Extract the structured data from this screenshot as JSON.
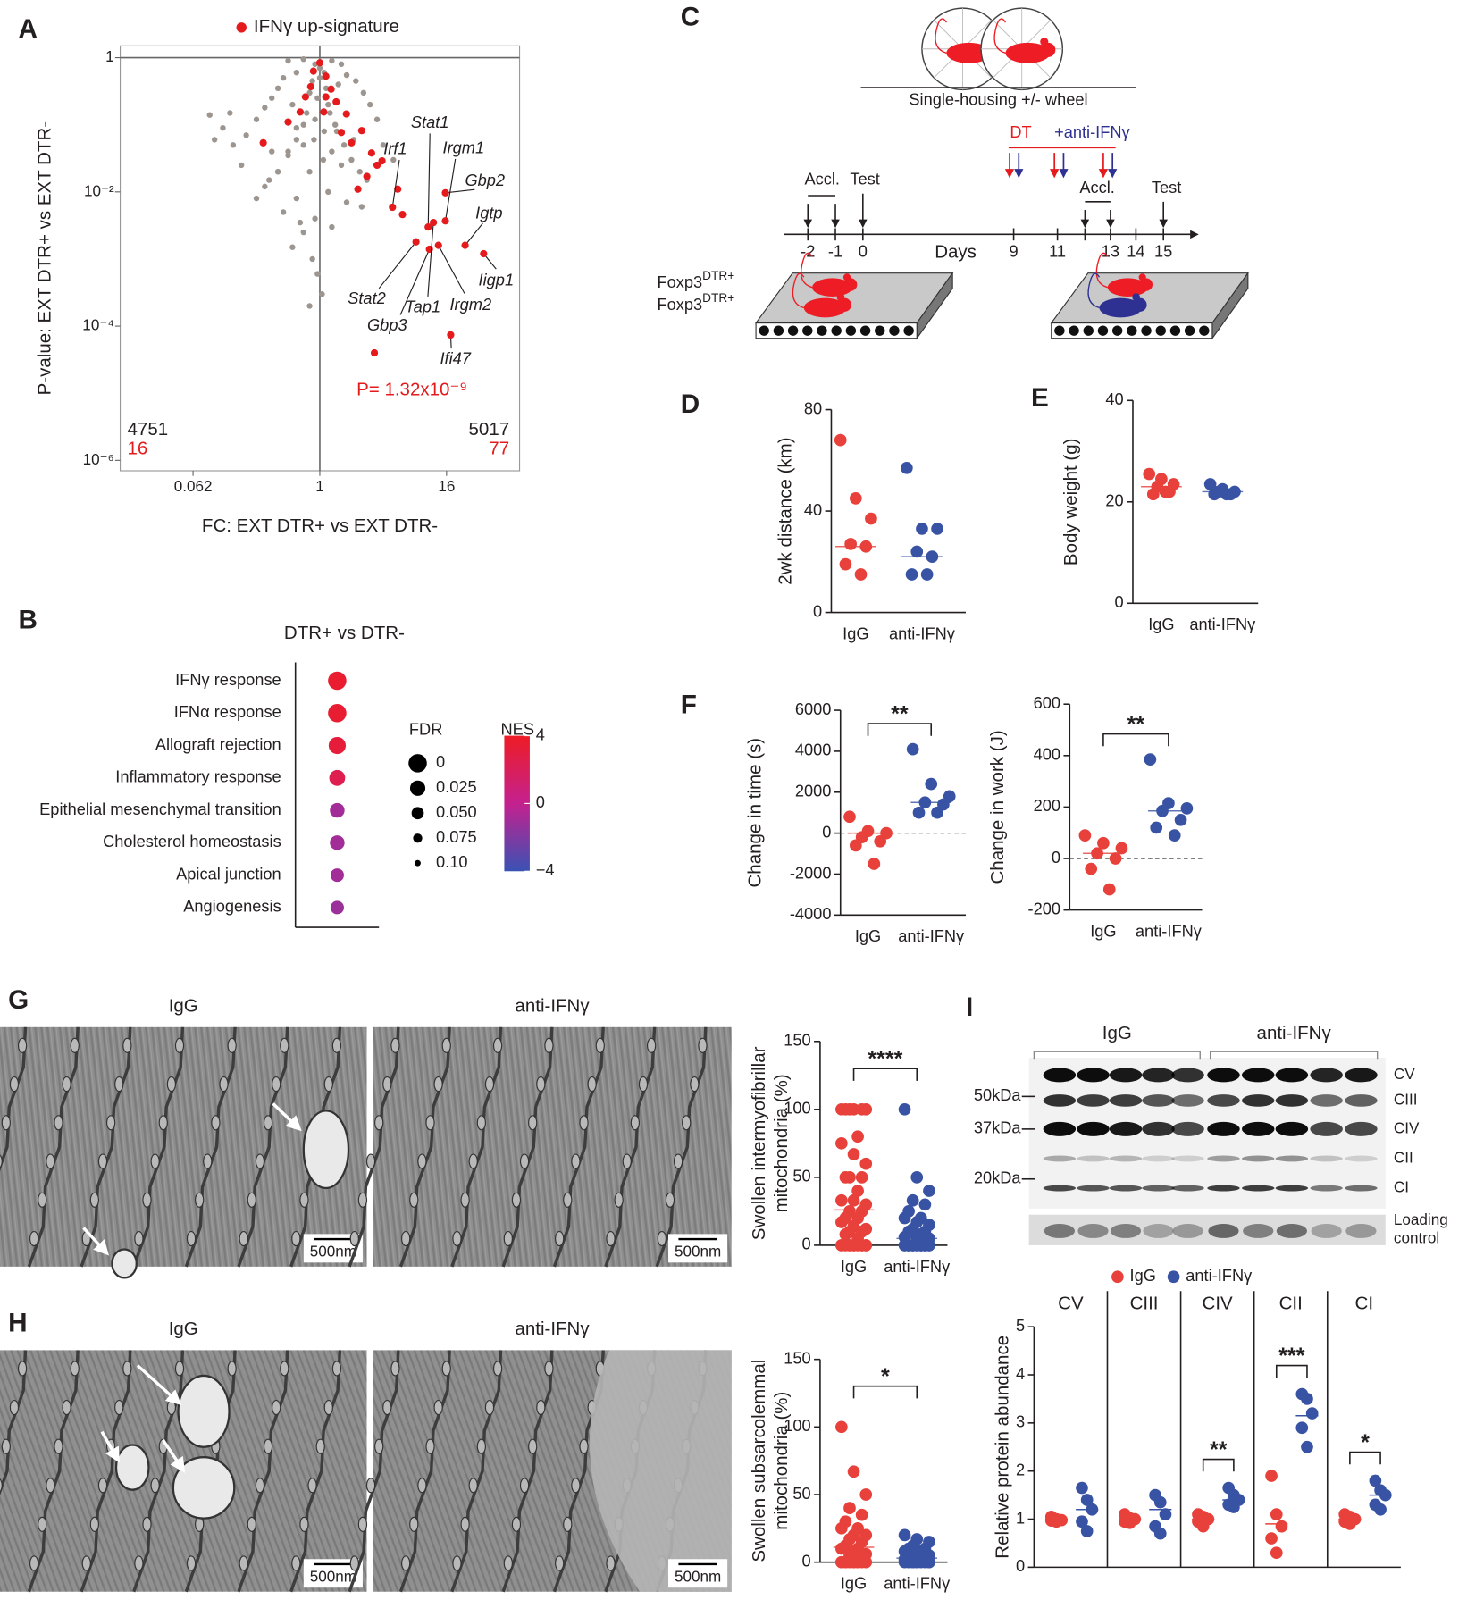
{
  "panel_letters": [
    "A",
    "B",
    "C",
    "D",
    "E",
    "F",
    "G",
    "H",
    "I"
  ],
  "chart_data": [
    {
      "type": "scatter",
      "log_x": true,
      "log_y": true,
      "xlabel": "FC: EXT DTR+ vs EXT DTR-",
      "ylabel": "P-value: EXT DTR+ vs EXT DTR-",
      "xlim": [
        0.0127,
        79
      ],
      "ylim": [
        7e-07,
        1.5
      ],
      "xticks": [
        {
          "value": 0.0625,
          "label": "0.062"
        },
        1,
        16
      ],
      "yticks": [
        1,
        {
          "value": 0.01,
          "label": "10⁻²"
        },
        {
          "value": 0.0001,
          "label": "10⁻⁴"
        },
        {
          "value": 1e-06,
          "label": "10⁻⁶"
        }
      ],
      "x_ref": 1,
      "y_ref": 1,
      "series": [
        {
          "color": "#9d958f",
          "x": [
            0.5,
            0.7,
            1.3,
            1.6,
            0.6,
            0.45,
            1.8,
            2.2,
            0.4,
            0.35,
            2.6,
            0.3,
            0.25,
            3,
            0.55,
            1.5,
            0.8,
            1.2,
            0.9,
            1.1,
            0.6,
            0.2,
            0.15,
            0.12,
            0.1,
            3.5,
            0.7,
            1.3,
            2.1,
            0.5,
            0.4,
            0.8,
            1.6,
            0.3,
            0.6,
            1.2,
            0.45,
            0.9,
            0.7,
            0.55,
            0.85,
            0.95,
            0.8,
            1.3,
            1.8,
            2.5,
            0.18,
            0.14,
            0.09,
            0.35,
            1,
            1,
            0.9,
            1.1,
            0.75,
            1.4,
            4,
            5,
            2.8,
            0.25,
            0.65,
            1.05,
            0.85,
            1.15,
            0.95,
            1.25,
            0.7,
            1.45,
            0.6,
            1.7,
            0.5,
            2,
            0.4,
            2.4,
            0.33,
            0.88,
            1.08
          ],
          "values": [
            0.9,
            0.95,
            0.9,
            0.8,
            0.6,
            0.5,
            0.55,
            0.45,
            0.35,
            0.25,
            0.3,
            0.18,
            0.12,
            0.2,
            0.2,
            0.4,
            0.3,
            0.2,
            0.12,
            0.08,
            0.09,
            0.07,
            0.05,
            0.09,
            0.06,
            0.12,
            0.05,
            0.04,
            0.06,
            0.035,
            0.02,
            0.02,
            0.025,
            0.012,
            0.008,
            0.01,
            0.005,
            0.004,
            0.0025,
            0.0015,
            0.001,
            0.0006,
            0.0002,
            0.003,
            0.007,
            0.006,
            0.025,
            0.15,
            0.14,
            0.04,
            0.5,
            0.7,
            0.8,
            0.6,
            0.15,
            0.1,
            0.05,
            0.03,
            0.015,
            0.008,
            0.0035,
            0.0003,
            0.45,
            0.35,
            0.25,
            0.15,
            0.1,
            0.08,
            0.06,
            0.05,
            0.04,
            0.03,
            0.02,
            0.02,
            0.015,
            0.06,
            0.03
          ]
        },
        {
          "name": "IFNγ up-signature",
          "color": "#e41a1c",
          "x": [
            1,
            0.87,
            1.14,
            0.82,
            1.28,
            1.43,
            1.09,
            0.73,
            1.79,
            1.6,
            2,
            2.5,
            3.1,
            3.5,
            3.9,
            2.8,
            2.3,
            5.5,
            0.65,
            0.29,
            0.5,
            1.14,
            6.1,
            3.3,
            4.9,
            10.7,
            15.6,
            15.6,
            24,
            36,
            8.2,
            11,
            12,
            13.4,
            17.5
          ],
          "values": [
            0.84,
            0.63,
            0.53,
            0.37,
            0.34,
            0.22,
            0.155,
            0.26,
            0.145,
            0.077,
            0.054,
            0.082,
            0.038,
            0.025,
            0.029,
            0.017,
            0.011,
            0.011,
            0.155,
            0.054,
            0.11,
            0.26,
            0.0046,
            4e-05,
            0.0059,
            0.003,
            0.0037,
            0.0097,
            0.0016,
            0.0012,
            0.0018,
            0.0014,
            0.0035,
            0.0016,
            7.4e-05
          ],
          "point_labels": [
            null,
            null,
            null,
            null,
            null,
            null,
            null,
            null,
            null,
            null,
            null,
            null,
            null,
            null,
            null,
            null,
            null,
            null,
            null,
            null,
            null,
            null,
            null,
            null,
            "Irf1",
            "Stat1",
            "Irgm1",
            "Gbp2",
            "Igtp",
            "Iigp1",
            "Stat2",
            "Gbp3",
            "Tap1",
            "Irgm2",
            "Ifi47"
          ]
        }
      ],
      "annotations": [
        {
          "text": "4751",
          "color": "#231f20"
        },
        {
          "text": "16",
          "color": "#e41a1c"
        },
        {
          "text": "5017",
          "color": "#231f20"
        },
        {
          "text": "77",
          "color": "#e41a1c"
        },
        {
          "text": "P= 1.32x10⁻⁹",
          "color": "#e41a1c"
        }
      ]
    },
    {
      "type": "dotplot",
      "title": "DTR+ vs DTR-",
      "categories": [
        "IFNγ response",
        "IFNα response",
        "Allograft rejection",
        "Inflammatory response",
        "Epithelial mesenchymal transition",
        "Cholesterol homeostasis",
        "Apical junction",
        "Angiogenesis"
      ],
      "series": [
        {
          "name": "FDR",
          "values": [
            0,
            0,
            0.01,
            0.02,
            0.03,
            0.03,
            0.04,
            0.04
          ]
        },
        {
          "name": "NES",
          "values": [
            3.6,
            3.5,
            3.2,
            2.4,
            -1,
            -1,
            -1,
            -1.2
          ]
        }
      ],
      "size_legend": [
        0,
        0.025,
        {
          "value": 0.05,
          "label": "0.050"
        },
        0.075,
        {
          "value": 0.1,
          "label": "0.10"
        }
      ],
      "clim": [
        -4,
        4
      ],
      "cticks": [
        4,
        0,
        {
          "value": -4,
          "label": "−4"
        }
      ],
      "colormap": [
        "#3a52b4",
        "#c4218f",
        "#ee1c25"
      ]
    },
    {
      "type": "strip",
      "ylabel": [
        "2wk distance (km)"
      ],
      "ylim": [
        0,
        80
      ],
      "yticks": [
        0,
        40,
        80
      ],
      "series": [
        {
          "name": "IgG",
          "color": "#e8403a",
          "values": [
            68,
            45,
            37,
            27,
            26,
            19,
            15
          ],
          "center": 26
        },
        {
          "name": "anti-IFNγ",
          "color": "#3953a4",
          "values": [
            57,
            33,
            33,
            24,
            22,
            15,
            15
          ],
          "center": 22
        }
      ]
    },
    {
      "type": "strip",
      "ylabel": [
        "Body weight (g)"
      ],
      "ylim": [
        0,
        40
      ],
      "yticks": [
        0,
        20,
        40
      ],
      "series": [
        {
          "name": "IgG",
          "color": "#e8403a",
          "values": [
            25.5,
            24.5,
            23.5,
            23,
            22,
            21.5,
            22
          ],
          "center": 23
        },
        {
          "name": "anti-IFNγ",
          "color": "#3953a4",
          "values": [
            23.5,
            22.5,
            22,
            22,
            21.5,
            21.5,
            21.5
          ],
          "center": 22
        }
      ]
    },
    {
      "type": "strip",
      "ylabel": [
        "Change in time (s)"
      ],
      "ylim": [
        -4000,
        6000
      ],
      "yticks": [
        -4000,
        -2000,
        0,
        2000,
        4000,
        6000
      ],
      "zero_line": true,
      "significance": "**",
      "series": [
        {
          "name": "IgG",
          "color": "#e8403a",
          "values": [
            800,
            100,
            0,
            -200,
            -400,
            -600,
            -1500
          ],
          "center": 0
        },
        {
          "name": "anti-IFNγ",
          "color": "#3953a4",
          "values": [
            4100,
            2400,
            1800,
            1500,
            1400,
            1000,
            1000
          ],
          "center": 1500
        }
      ]
    },
    {
      "type": "strip",
      "ylabel": [
        "Change in work (J)"
      ],
      "ylim": [
        -200,
        600
      ],
      "yticks": [
        -200,
        0,
        200,
        400,
        600
      ],
      "zero_line": true,
      "significance": "**",
      "series": [
        {
          "name": "IgG",
          "color": "#e8403a",
          "values": [
            90,
            60,
            40,
            20,
            0,
            -40,
            -120
          ],
          "center": 20
        },
        {
          "name": "anti-IFNγ",
          "color": "#3953a4",
          "values": [
            385,
            215,
            195,
            185,
            150,
            120,
            90
          ],
          "center": 185
        }
      ]
    },
    {
      "type": "strip",
      "ylabel": [
        "Swollen intermyofibrillar",
        "mitochondria (%)"
      ],
      "ylim": [
        0,
        150
      ],
      "yticks": [
        0,
        50,
        100,
        150
      ],
      "significance": "****",
      "series": [
        {
          "name": "IgG",
          "color": "#e8403a",
          "values": [
            100,
            100,
            100,
            100,
            100,
            100,
            80,
            75,
            67,
            60,
            50,
            50,
            50,
            40,
            33,
            33,
            30,
            25,
            25,
            20,
            20,
            17,
            14,
            12,
            10,
            10,
            8,
            5,
            0,
            0,
            0,
            0,
            0,
            0,
            0,
            0,
            0,
            0,
            0,
            0
          ],
          "center": 26
        },
        {
          "name": "anti-IFNγ",
          "color": "#3953a4",
          "values": [
            100,
            50,
            40,
            33,
            30,
            25,
            20,
            20,
            17,
            15,
            12,
            10,
            10,
            8,
            6,
            5,
            5,
            0,
            0,
            0,
            0,
            0,
            0,
            0,
            0,
            0,
            0,
            0,
            0,
            0,
            0,
            0,
            0,
            0,
            0
          ],
          "center": 5
        }
      ]
    },
    {
      "type": "strip",
      "ylabel": [
        "Swollen subsarcolemmal",
        "mitochondria (%)"
      ],
      "ylim": [
        0,
        150
      ],
      "yticks": [
        0,
        50,
        100,
        150
      ],
      "significance": "*",
      "series": [
        {
          "name": "IgG",
          "color": "#e8403a",
          "values": [
            100,
            67,
            50,
            40,
            35,
            30,
            25,
            25,
            20,
            20,
            17,
            15,
            12,
            10,
            10,
            8,
            6,
            5,
            5,
            0,
            0,
            0,
            0,
            0,
            0,
            0,
            0,
            0,
            0,
            0
          ],
          "center": 11
        },
        {
          "name": "anti-IFNγ",
          "color": "#3953a4",
          "values": [
            20,
            17,
            15,
            12,
            10,
            10,
            8,
            8,
            6,
            5,
            5,
            5,
            4,
            3,
            2,
            0,
            0,
            0,
            0,
            0,
            0,
            0,
            0,
            0,
            0
          ],
          "center": 3
        }
      ]
    },
    {
      "type": "strip_facets",
      "ylabel": [
        "Relative protein abundance"
      ],
      "ylim": [
        0,
        5
      ],
      "yticks": [
        0,
        1,
        2,
        3,
        4,
        5
      ],
      "series": [
        {
          "name": "IgG",
          "color": "#e8403a"
        },
        {
          "name": "anti-IFNγ",
          "color": "#3953a4"
        }
      ],
      "panels": [
        {
          "title": "CV",
          "values": [
            [
              1.05,
              1,
              0.98,
              0.97,
              0.95
            ],
            [
              1.65,
              1.4,
              1.2,
              0.95,
              0.75
            ]
          ],
          "centers": [
            1,
            1.2
          ]
        },
        {
          "title": "CIII",
          "values": [
            [
              1.1,
              1.02,
              1,
              0.95,
              0.92
            ],
            [
              1.5,
              1.35,
              1.1,
              0.85,
              0.7
            ]
          ],
          "centers": [
            1,
            1.2
          ]
        },
        {
          "title": "CIV",
          "values": [
            [
              1.1,
              1.05,
              1,
              0.95,
              0.85
            ],
            [
              1.65,
              1.5,
              1.4,
              1.3,
              1.25
            ]
          ],
          "centers": [
            1,
            1.4
          ],
          "significance": "**"
        },
        {
          "title": "CII",
          "values": [
            [
              1.9,
              1.1,
              0.85,
              0.6,
              0.3
            ],
            [
              3.6,
              3.5,
              3.2,
              2.9,
              2.5
            ]
          ],
          "centers": [
            0.9,
            3.15
          ],
          "significance": "***"
        },
        {
          "title": "CI",
          "values": [
            [
              1.1,
              1.05,
              1,
              0.95,
              0.9
            ],
            [
              1.8,
              1.6,
              1.5,
              1.3,
              1.2
            ]
          ],
          "centers": [
            1,
            1.5
          ],
          "significance": "*"
        }
      ]
    }
  ],
  "diagram": {
    "housing": "Single-housing +/- wheel",
    "treatment": [
      "DT",
      "+anti-IFNγ"
    ],
    "phases": [
      "Accl.",
      "Test",
      "Accl.",
      "Test"
    ],
    "days": [
      "-2",
      "-1",
      "0",
      "9",
      "11",
      "13",
      "14",
      "15"
    ],
    "days_label": "Days",
    "genotype": [
      "Foxp3",
      "DTR+"
    ]
  },
  "micrographs": [
    {
      "titles": [
        "IgG",
        "anti-IFNγ"
      ],
      "scale_bars": [
        "500nm",
        "500nm"
      ]
    },
    {
      "titles": [
        "IgG",
        "anti-IFNγ"
      ],
      "scale_bars": [
        "500nm",
        "500nm"
      ]
    }
  ],
  "blot": {
    "groups": [
      "IgG",
      "anti-IFNγ"
    ],
    "markers": [
      "50kDa",
      "37kDa",
      "20kDa"
    ],
    "bands": [
      "CV",
      "CIII",
      "CIV",
      "CII",
      "CI"
    ],
    "loading_control": [
      "Loading",
      "control"
    ]
  }
}
